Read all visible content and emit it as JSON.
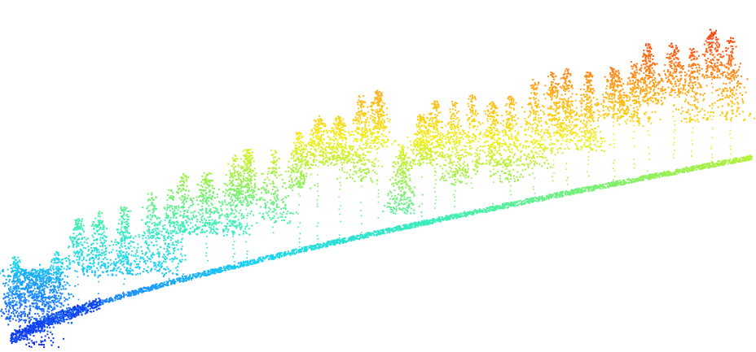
{
  "image": {
    "subject": "lidar-point-cloud-forest-slope",
    "background_color": "#ffffff",
    "colormap": "jet",
    "color_encoding": "elevation",
    "colormap_stops": [
      "#0a1ee6",
      "#1a78ff",
      "#1ad2f0",
      "#3cf0b4",
      "#96f050",
      "#f0f014",
      "#ffb414",
      "#ff6414",
      "#f02814"
    ]
  }
}
